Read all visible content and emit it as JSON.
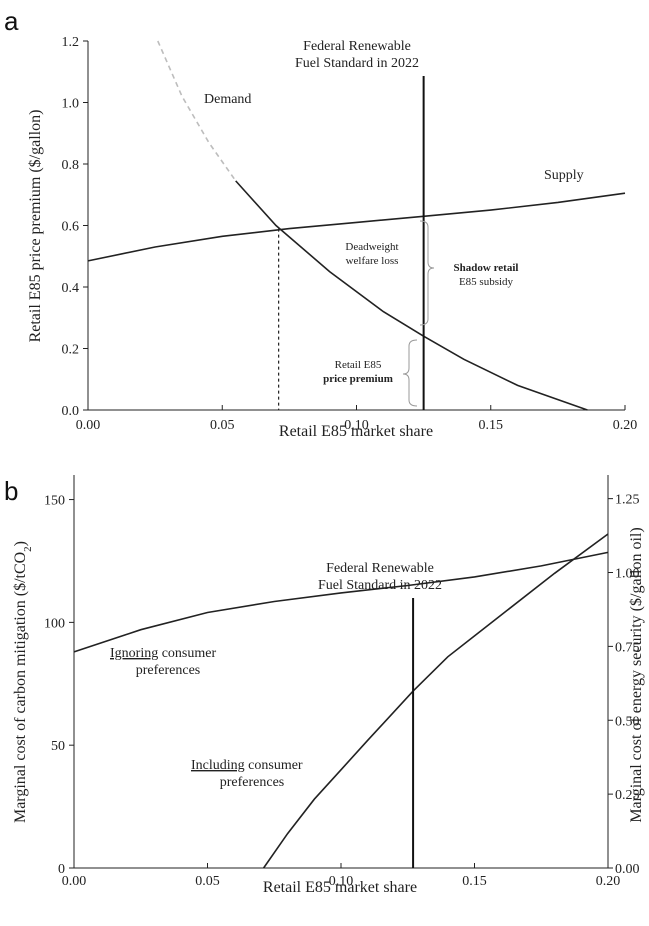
{
  "chart_data": [
    {
      "panel": "a",
      "type": "line",
      "xlabel": "Retail E85 market share",
      "ylabel": "Retail E85 price premium ($/gallon)",
      "xlim": [
        0,
        0.2
      ],
      "ylim": [
        0,
        1.2
      ],
      "x_ticks": [
        "0.00",
        "0.05",
        "0.10",
        "0.15",
        "0.20"
      ],
      "y_ticks": [
        "0.0",
        "0.2",
        "0.4",
        "0.6",
        "0.8",
        "1.0",
        "1.2"
      ],
      "series": [
        {
          "name": "Supply",
          "x": [
            0.0,
            0.025,
            0.05,
            0.075,
            0.1,
            0.125,
            0.15,
            0.175,
            0.2
          ],
          "y": [
            0.485,
            0.53,
            0.565,
            0.59,
            0.61,
            0.63,
            0.65,
            0.675,
            0.705
          ]
        },
        {
          "name": "Demand",
          "x": [
            0.055,
            0.07,
            0.09,
            0.11,
            0.125,
            0.14,
            0.16,
            0.186
          ],
          "y": [
            0.745,
            0.6,
            0.45,
            0.32,
            0.24,
            0.165,
            0.08,
            0.0
          ]
        },
        {
          "name": "Demand (extrapolated)",
          "x": [
            0.026,
            0.035,
            0.045,
            0.055
          ],
          "y": [
            1.2,
            1.02,
            0.87,
            0.745
          ]
        }
      ],
      "equilibrium": {
        "x": 0.071,
        "y": 0.59
      },
      "mandate_x": 0.125,
      "mandate_label_line1": "Federal Renewable",
      "mandate_label_line2": "Fuel Standard in 2022",
      "annotations": {
        "demand": "Demand",
        "supply": "Supply",
        "dwl_line1": "Deadweight",
        "dwl_line2": "welfare loss",
        "subsidy_line1": "Shadow retail",
        "subsidy_line2": "E85 subsidy",
        "premium_line1": "Retail E85",
        "premium_line2": "price premium"
      }
    },
    {
      "panel": "b",
      "type": "line",
      "xlabel": "Retail E85 market share",
      "ylabel": "Marginal cost of carbon mitigation ($/tCO",
      "ylabel_sub": "2",
      "ylabel_close": ")",
      "y2label": "Marginal cost of energy security ($/gallon oil)",
      "xlim": [
        0,
        0.2
      ],
      "ylim": [
        0,
        160
      ],
      "y2lim": [
        0,
        1.33
      ],
      "x_ticks": [
        "0.00",
        "0.05",
        "0.10",
        "0.15",
        "0.20"
      ],
      "y_ticks": [
        "0",
        "50",
        "100",
        "150"
      ],
      "y2_ticks": [
        "0.00",
        "0.25",
        "0.50",
        "0.75",
        "1.00",
        "1.25"
      ],
      "series": [
        {
          "name": "Ignoring consumer preferences",
          "x": [
            0.0,
            0.025,
            0.05,
            0.075,
            0.1,
            0.125,
            0.15,
            0.175,
            0.2
          ],
          "y": [
            88,
            97,
            104,
            108.5,
            112,
            115,
            118.5,
            123,
            128.5
          ]
        },
        {
          "name": "Including consumer preferences",
          "x": [
            0.071,
            0.08,
            0.09,
            0.1,
            0.11,
            0.127,
            0.14,
            0.16,
            0.18,
            0.2
          ],
          "y": [
            0,
            14,
            28,
            40,
            52,
            72,
            86,
            103,
            120,
            136
          ]
        }
      ],
      "mandate_x": 0.127,
      "mandate_label_line1": "Federal Renewable",
      "mandate_label_line2": "Fuel Standard in 2022",
      "annotations": {
        "ignoring_underlined": "Ignoring",
        "ignoring_rest": " consumer",
        "ignoring_line2": "preferences",
        "including_underlined": "Including",
        "including_rest": " consumer",
        "including_line2": "preferences"
      }
    }
  ]
}
